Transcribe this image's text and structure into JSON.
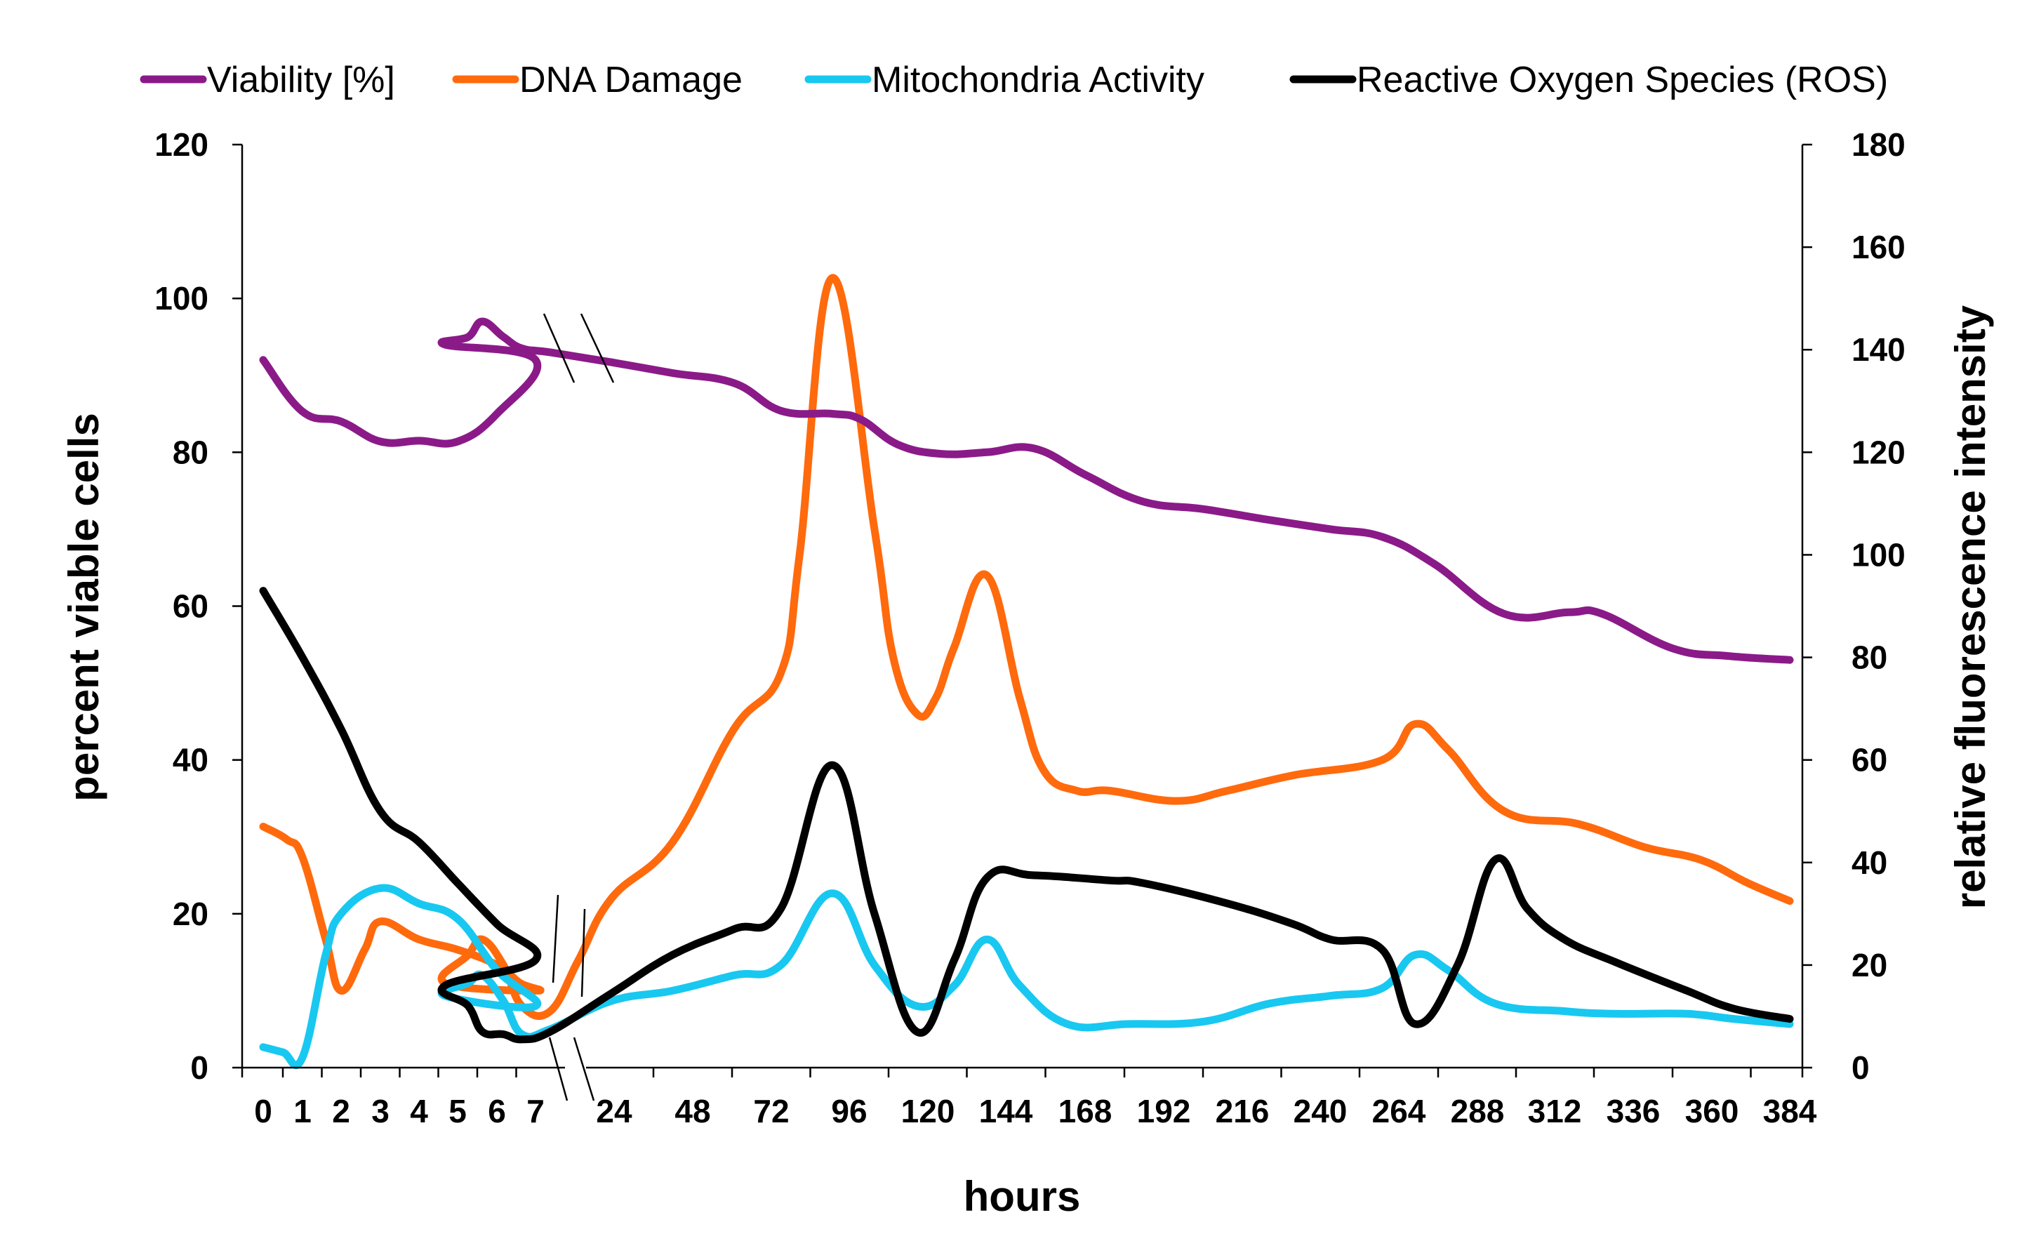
{
  "chart_data": {
    "type": "line",
    "xlabel": "hours",
    "ylabel_left": "percent viable cells",
    "ylabel_right": "relative fluorescence intensity",
    "ylim_left": [
      0,
      120
    ],
    "ylim_right": [
      0,
      180
    ],
    "yticks_left": [
      "0",
      "20",
      "40",
      "60",
      "80",
      "100",
      "120"
    ],
    "yticks_right": [
      "0",
      "20",
      "40",
      "60",
      "80",
      "100",
      "120",
      "140",
      "160",
      "180"
    ],
    "categories": [
      "0",
      "1",
      "2",
      "3",
      "4",
      "5",
      "6",
      "7",
      "24",
      "48",
      "72",
      "96",
      "120",
      "144",
      "168",
      "192",
      "216",
      "240",
      "264",
      "288",
      "312",
      "336",
      "360",
      "384"
    ],
    "axis_break": "between 7 and 24",
    "legend_position": "top",
    "series": [
      {
        "name": "Viability [%]",
        "axis": "left",
        "color": "#8B1A89",
        "points": [
          {
            "x": 0,
            "y": 92
          },
          {
            "x": 1,
            "y": 85.3
          },
          {
            "x": 2,
            "y": 84
          },
          {
            "x": 3,
            "y": 81.4
          },
          {
            "x": 4,
            "y": 81.5
          },
          {
            "x": 5,
            "y": 81.4
          },
          {
            "x": 6,
            "y": 85
          },
          {
            "x": 7,
            "y": 92
          },
          {
            "x": 7.8,
            "y": 94
          },
          {
            "x": 8.8,
            "y": 95
          },
          {
            "x": 9.4,
            "y": 97
          },
          {
            "x": 10.3,
            "y": 95
          },
          {
            "x": 11.1,
            "y": 93.5
          },
          {
            "x": 12,
            "y": 93
          },
          {
            "x": 13.3,
            "y": 91.7
          },
          {
            "x": 14.6,
            "y": 90.3
          },
          {
            "x": 15.9,
            "y": 89
          },
          {
            "x": 16.9,
            "y": 85.4
          },
          {
            "x": 18,
            "y": 85
          },
          {
            "x": 18.6,
            "y": 84.3
          },
          {
            "x": 19.4,
            "y": 81
          },
          {
            "x": 20.3,
            "y": 79.8
          },
          {
            "x": 21.3,
            "y": 80
          },
          {
            "x": 22.3,
            "y": 80.5
          },
          {
            "x": 23.4,
            "y": 77
          },
          {
            "x": 24.6,
            "y": 73.6
          },
          {
            "x": 25.9,
            "y": 72.6
          },
          {
            "x": 27.3,
            "y": 71.2
          },
          {
            "x": 28.6,
            "y": 70
          },
          {
            "x": 29.7,
            "y": 69
          },
          {
            "x": 30.8,
            "y": 65.5
          },
          {
            "x": 32.3,
            "y": 59
          },
          {
            "x": 33.7,
            "y": 59.2
          },
          {
            "x": 34.4,
            "y": 59
          },
          {
            "x": 35.9,
            "y": 54.5
          },
          {
            "x": 37.1,
            "y": 53.5
          },
          {
            "x": 38.4,
            "y": 53
          }
        ]
      },
      {
        "name": "DNA Damage",
        "axis": "right",
        "color": "#FF6A0D",
        "points": [
          {
            "x": 0,
            "y": 47
          },
          {
            "x": 0.6,
            "y": 44.5
          },
          {
            "x": 1,
            "y": 41
          },
          {
            "x": 1.6,
            "y": 25
          },
          {
            "x": 2,
            "y": 15
          },
          {
            "x": 2.6,
            "y": 23
          },
          {
            "x": 3,
            "y": 28.5
          },
          {
            "x": 4,
            "y": 25
          },
          {
            "x": 5,
            "y": 23
          },
          {
            "x": 6,
            "y": 20
          },
          {
            "x": 6.6,
            "y": 16.5
          },
          {
            "x": 7,
            "y": 15
          },
          {
            "x": 7.8,
            "y": 16.5
          },
          {
            "x": 8.8,
            "y": 22
          },
          {
            "x": 9.4,
            "y": 25
          },
          {
            "x": 10.3,
            "y": 20
          },
          {
            "x": 11.1,
            "y": 12
          },
          {
            "x": 12,
            "y": 11
          },
          {
            "x": 12.6,
            "y": 21
          },
          {
            "x": 13.3,
            "y": 33
          },
          {
            "x": 14.6,
            "y": 44
          },
          {
            "x": 15.9,
            "y": 66
          },
          {
            "x": 16.9,
            "y": 77
          },
          {
            "x": 17.3,
            "y": 100
          },
          {
            "x": 18,
            "y": 154
          },
          {
            "x": 18.9,
            "y": 105
          },
          {
            "x": 19.3,
            "y": 80
          },
          {
            "x": 19.8,
            "y": 69
          },
          {
            "x": 20.2,
            "y": 72
          },
          {
            "x": 20.6,
            "y": 82
          },
          {
            "x": 21.3,
            "y": 96
          },
          {
            "x": 22,
            "y": 72
          },
          {
            "x": 22.5,
            "y": 58
          },
          {
            "x": 23.2,
            "y": 54
          },
          {
            "x": 23.9,
            "y": 54
          },
          {
            "x": 25.3,
            "y": 52
          },
          {
            "x": 26.4,
            "y": 54
          },
          {
            "x": 27.8,
            "y": 57
          },
          {
            "x": 29.7,
            "y": 60
          },
          {
            "x": 30.4,
            "y": 67
          },
          {
            "x": 31.1,
            "y": 62
          },
          {
            "x": 32.3,
            "y": 50
          },
          {
            "x": 33.9,
            "y": 47.5
          },
          {
            "x": 35.3,
            "y": 43
          },
          {
            "x": 36.5,
            "y": 40.5
          },
          {
            "x": 37.5,
            "y": 36
          },
          {
            "x": 38.4,
            "y": 32.5
          }
        ]
      },
      {
        "name": "Mitochondria Activity",
        "axis": "right",
        "color": "#18C8F0",
        "points": [
          {
            "x": 0,
            "y": 4
          },
          {
            "x": 0.5,
            "y": 3
          },
          {
            "x": 1,
            "y": 2
          },
          {
            "x": 1.6,
            "y": 22
          },
          {
            "x": 2,
            "y": 30
          },
          {
            "x": 3,
            "y": 35
          },
          {
            "x": 4,
            "y": 32
          },
          {
            "x": 5,
            "y": 29
          },
          {
            "x": 6,
            "y": 19
          },
          {
            "x": 7,
            "y": 12
          },
          {
            "x": 7.8,
            "y": 14
          },
          {
            "x": 8.8,
            "y": 16.5
          },
          {
            "x": 9.4,
            "y": 18
          },
          {
            "x": 10.3,
            "y": 13
          },
          {
            "x": 11.1,
            "y": 6.5
          },
          {
            "x": 12,
            "y": 7.5
          },
          {
            "x": 13.3,
            "y": 13
          },
          {
            "x": 14.6,
            "y": 15
          },
          {
            "x": 15.9,
            "y": 18
          },
          {
            "x": 16.9,
            "y": 20
          },
          {
            "x": 18,
            "y": 34
          },
          {
            "x": 18.9,
            "y": 20
          },
          {
            "x": 19.8,
            "y": 12
          },
          {
            "x": 20.6,
            "y": 16
          },
          {
            "x": 21.3,
            "y": 25
          },
          {
            "x": 22,
            "y": 16
          },
          {
            "x": 23,
            "y": 8.5
          },
          {
            "x": 24.3,
            "y": 8.5
          },
          {
            "x": 25.9,
            "y": 9
          },
          {
            "x": 27.3,
            "y": 12.5
          },
          {
            "x": 28.6,
            "y": 14
          },
          {
            "x": 29.7,
            "y": 15.5
          },
          {
            "x": 30.4,
            "y": 22
          },
          {
            "x": 31.1,
            "y": 19
          },
          {
            "x": 32.1,
            "y": 12.5
          },
          {
            "x": 33.6,
            "y": 11
          },
          {
            "x": 34.7,
            "y": 10.5
          },
          {
            "x": 36.2,
            "y": 10.5
          },
          {
            "x": 37.2,
            "y": 9.5
          },
          {
            "x": 38.4,
            "y": 8.5
          }
        ]
      },
      {
        "name": "Reactive Oxygen Species (ROS)",
        "axis": "right",
        "color": "#000000",
        "points": [
          {
            "x": 0,
            "y": 93
          },
          {
            "x": 1,
            "y": 80
          },
          {
            "x": 2,
            "y": 66
          },
          {
            "x": 3,
            "y": 50
          },
          {
            "x": 4,
            "y": 44
          },
          {
            "x": 5,
            "y": 36
          },
          {
            "x": 6,
            "y": 28
          },
          {
            "x": 7,
            "y": 21
          },
          {
            "x": 7.8,
            "y": 16
          },
          {
            "x": 8.8,
            "y": 12
          },
          {
            "x": 9.4,
            "y": 7
          },
          {
            "x": 10.3,
            "y": 6.5
          },
          {
            "x": 11.1,
            "y": 5.5
          },
          {
            "x": 12,
            "y": 7
          },
          {
            "x": 13.3,
            "y": 14.5
          },
          {
            "x": 14.6,
            "y": 22
          },
          {
            "x": 15.9,
            "y": 27
          },
          {
            "x": 16.9,
            "y": 31
          },
          {
            "x": 18,
            "y": 59
          },
          {
            "x": 18.9,
            "y": 30
          },
          {
            "x": 19.8,
            "y": 7
          },
          {
            "x": 20.6,
            "y": 21
          },
          {
            "x": 21.3,
            "y": 37
          },
          {
            "x": 22.3,
            "y": 37.5
          },
          {
            "x": 23.9,
            "y": 36.5
          },
          {
            "x": 24.6,
            "y": 36
          },
          {
            "x": 26.4,
            "y": 32
          },
          {
            "x": 27.8,
            "y": 28
          },
          {
            "x": 28.6,
            "y": 25
          },
          {
            "x": 29.7,
            "y": 23
          },
          {
            "x": 30.4,
            "y": 8.5
          },
          {
            "x": 31.3,
            "y": 20
          },
          {
            "x": 32.1,
            "y": 40.5
          },
          {
            "x": 32.8,
            "y": 31
          },
          {
            "x": 33.6,
            "y": 25
          },
          {
            "x": 34.7,
            "y": 20.5
          },
          {
            "x": 36.2,
            "y": 15
          },
          {
            "x": 37.2,
            "y": 11.5
          },
          {
            "x": 38.4,
            "y": 9.5
          }
        ]
      }
    ]
  }
}
